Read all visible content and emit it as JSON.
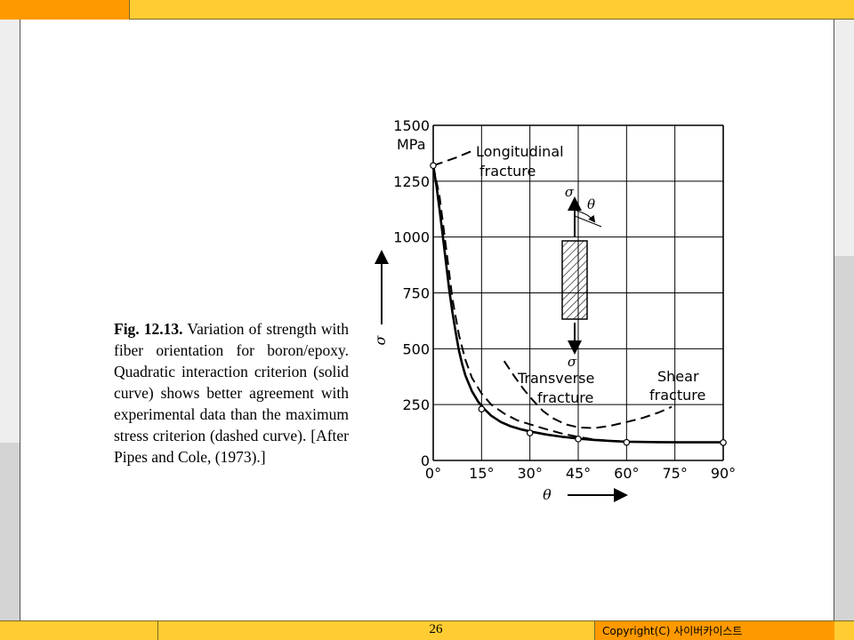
{
  "slide": {
    "page_number": "26",
    "copyright": "Copyright(C) 사이버카이스트"
  },
  "caption": {
    "fig_label": "Fig. 12.13.",
    "text": "Variation of strength with fiber orientation for boron/epoxy. Quadratic interaction criterion (solid curve) shows better agreement with experimental data than the maximum stress criterion (dashed curve). [After Pipes and Cole, (1973).]"
  },
  "chart_data": {
    "type": "line",
    "x_ticks": [
      "0°",
      "15°",
      "30°",
      "45°",
      "60°",
      "75°",
      "90°"
    ],
    "y_ticks": [
      "0",
      "250",
      "500",
      "750",
      "1000",
      "1250",
      "1500"
    ],
    "y_unit": "MPa",
    "xlabel": "θ",
    "ylabel": "σ",
    "xlim": [
      0,
      90
    ],
    "ylim": [
      0,
      1500
    ],
    "grid": true,
    "series": [
      {
        "style": "solid",
        "points": [
          [
            0,
            1320
          ],
          [
            1,
            1230
          ],
          [
            2,
            1120
          ],
          [
            3,
            1000
          ],
          [
            4,
            880
          ],
          [
            5,
            760
          ],
          [
            6,
            660
          ],
          [
            7,
            570
          ],
          [
            8,
            490
          ],
          [
            9,
            430
          ],
          [
            10,
            380
          ],
          [
            12,
            310
          ],
          [
            14,
            262
          ],
          [
            16,
            228
          ],
          [
            18,
            200
          ],
          [
            21,
            172
          ],
          [
            24,
            153
          ],
          [
            27,
            140
          ],
          [
            30,
            130
          ],
          [
            35,
            116
          ],
          [
            40,
            106
          ],
          [
            45,
            98
          ],
          [
            50,
            92
          ],
          [
            55,
            87
          ],
          [
            60,
            84
          ],
          [
            70,
            82
          ],
          [
            80,
            81
          ],
          [
            90,
            81
          ]
        ]
      },
      {
        "style": "dashed",
        "points": [
          [
            0,
            1320
          ],
          [
            2,
            1180
          ],
          [
            4,
            950
          ],
          [
            6,
            720
          ],
          [
            8,
            560
          ],
          [
            10,
            450
          ],
          [
            12,
            370
          ],
          [
            15,
            300
          ],
          [
            18,
            250
          ],
          [
            22,
            210
          ],
          [
            26,
            180
          ],
          [
            30,
            162
          ],
          [
            35,
            140
          ],
          [
            40,
            120
          ],
          [
            45,
            105
          ],
          [
            50,
            94
          ],
          [
            55,
            88
          ],
          [
            60,
            84
          ]
        ]
      },
      {
        "style": "dashed",
        "points": [
          [
            22,
            445
          ],
          [
            25,
            380
          ],
          [
            28,
            320
          ],
          [
            31,
            268
          ],
          [
            34,
            222
          ],
          [
            37,
            190
          ],
          [
            41,
            162
          ],
          [
            45,
            148
          ],
          [
            50,
            145
          ],
          [
            55,
            155
          ],
          [
            60,
            172
          ],
          [
            65,
            190
          ],
          [
            70,
            215
          ],
          [
            74,
            240
          ]
        ]
      },
      {
        "style": "dashed",
        "points": [
          [
            0,
            1320
          ],
          [
            3,
            1335
          ],
          [
            7,
            1355
          ],
          [
            12,
            1385
          ]
        ]
      }
    ],
    "experimental_points": [
      [
        0,
        1320
      ],
      [
        15,
        230
      ],
      [
        30,
        123
      ],
      [
        45,
        96
      ],
      [
        60,
        81
      ],
      [
        90,
        80
      ]
    ],
    "annotations": [
      "Longitudinal",
      "fracture",
      "Transverse",
      "fracture",
      "Shear",
      "fracture"
    ],
    "inset_labels": {
      "sigma_top": "σ",
      "theta": "θ",
      "sigma_bottom": "σ"
    }
  }
}
